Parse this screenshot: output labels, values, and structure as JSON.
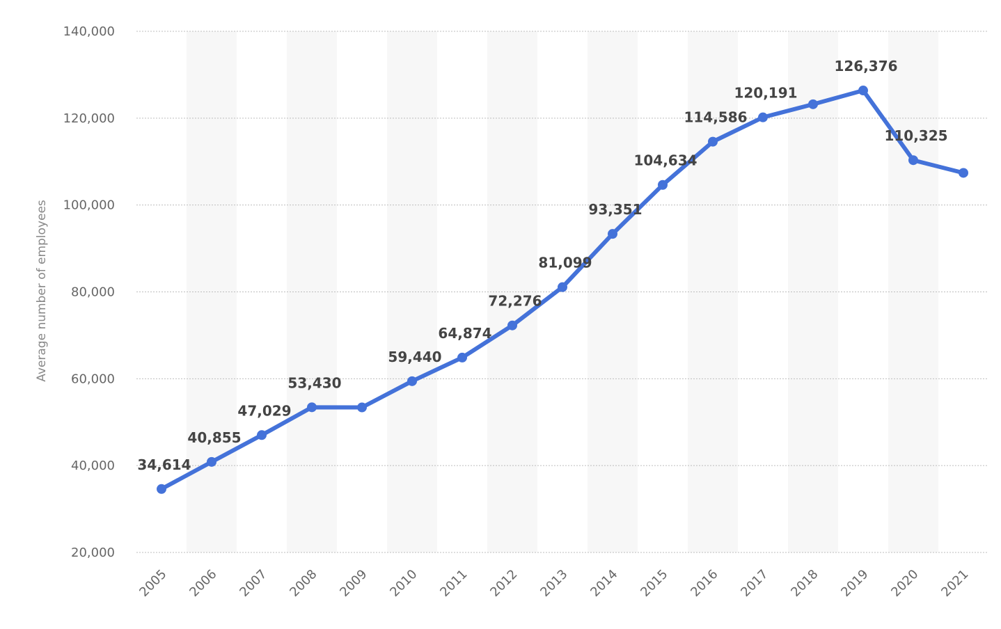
{
  "chart_data": {
    "type": "line",
    "title": "",
    "xlabel": "",
    "ylabel": "Average number of employees",
    "categories": [
      "2005",
      "2006",
      "2007",
      "2008",
      "2009",
      "2010",
      "2011",
      "2012",
      "2013",
      "2014",
      "2015",
      "2016",
      "2017",
      "2018",
      "2019",
      "2020",
      "2021"
    ],
    "series": [
      {
        "name": "",
        "values": [
          34614,
          40855,
          47029,
          53430,
          53400,
          59440,
          64874,
          72276,
          81099,
          93351,
          104634,
          114586,
          120191,
          123200,
          126376,
          110325,
          107400
        ]
      }
    ],
    "data_labels": [
      "34,614",
      "40,855",
      "47,029",
      "53,430",
      "",
      "59,440",
      "64,874",
      "72,276",
      "81,099",
      "93,351",
      "104,634",
      "114,586",
      "120,191",
      "",
      "126,376",
      "110,325",
      ""
    ],
    "yticks": [
      20000,
      40000,
      60000,
      80000,
      100000,
      120000,
      140000
    ],
    "ytick_labels": [
      "20,000",
      "40,000",
      "60,000",
      "80,000",
      "100,000",
      "120,000",
      "140,000"
    ],
    "ylim": [
      20000,
      140000
    ],
    "grid": true,
    "legend": "none",
    "colors": {
      "line": "#4472d9",
      "band": "#f7f7f7",
      "grid": "#bdbdbd"
    }
  }
}
